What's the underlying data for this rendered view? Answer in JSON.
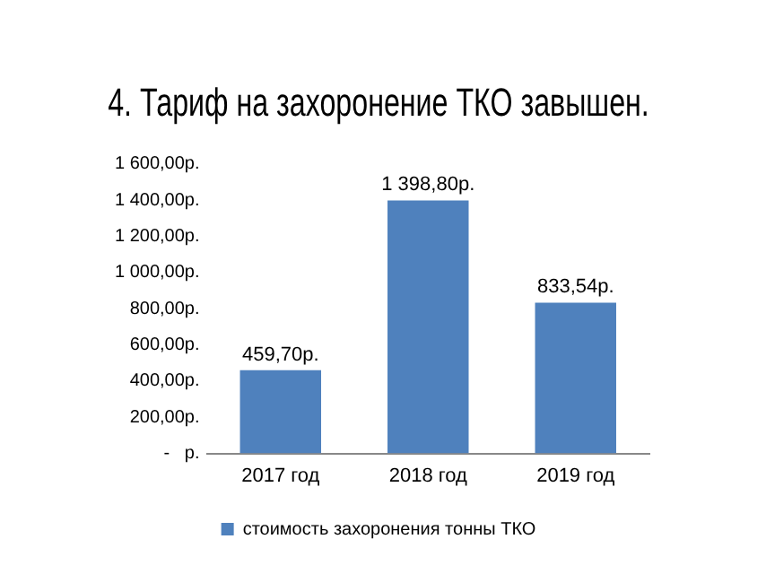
{
  "chart_data": {
    "type": "bar",
    "title": "4. Тариф на захоронение ТКО завышен.",
    "categories": [
      "2017 год",
      "2018 год",
      "2019 год"
    ],
    "series": [
      {
        "name": "стоимость захоронения тонны ТКО",
        "color": "#4f81bd",
        "values": [
          459.7,
          1398.8,
          833.54
        ],
        "value_labels": [
          "459,70р.",
          "1 398,80р.",
          "833,54р."
        ]
      }
    ],
    "ylim": [
      0,
      1600
    ],
    "yticks": [
      {
        "value": 0,
        "label": "-   р."
      },
      {
        "value": 200,
        "label": "200,00р."
      },
      {
        "value": 400,
        "label": "400,00р."
      },
      {
        "value": 600,
        "label": "600,00р."
      },
      {
        "value": 800,
        "label": "800,00р."
      },
      {
        "value": 1000,
        "label": "1 000,00р."
      },
      {
        "value": 1200,
        "label": "1 200,00р."
      },
      {
        "value": 1400,
        "label": "1 400,00р."
      },
      {
        "value": 1600,
        "label": "1 600,00р."
      }
    ],
    "grid": false,
    "legend": "bottom"
  }
}
